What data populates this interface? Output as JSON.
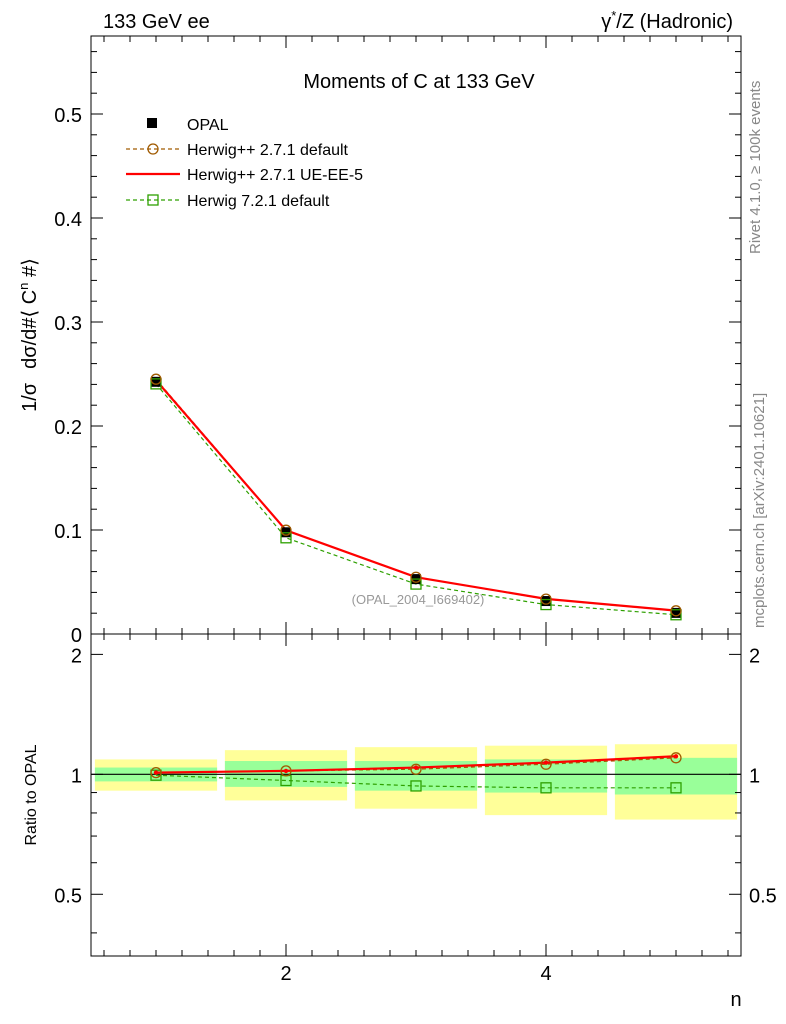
{
  "header": {
    "left": "133 GeV ee",
    "right_prefix": "γ",
    "right_sup": "*",
    "right_suffix": "/Z (Hadronic)"
  },
  "side_labels": {
    "rivet": "Rivet 4.1.0, ≥ 100k events",
    "mcplots": "mcplots.cern.ch [arXiv:2401.10621]"
  },
  "colors": {
    "data": "#000000",
    "herwigpp_default": "#a05a00",
    "herwigpp_ueee5": "#ff0000",
    "herwig7": "#2ea000",
    "band_inner": "#99ff99",
    "band_outer": "#ffff99"
  },
  "chart_data": [
    {
      "type": "line",
      "title": "Moments of C at 133 GeV",
      "xlabel": "n",
      "ylabel_parts": {
        "a": "1/σ",
        "b": "dσ/d#⟨ C",
        "sup": "n",
        "c": " #⟩"
      },
      "xlim": [
        0.5,
        5.5
      ],
      "ylim": [
        0,
        0.575
      ],
      "yticks": [
        0,
        0.1,
        0.2,
        0.3,
        0.4,
        0.5
      ],
      "ytick_labels": [
        "0",
        "0.1",
        "0.2",
        "0.3",
        "0.4",
        "0.5"
      ],
      "watermark": "(OPAL_2004_I669402)",
      "x": [
        1,
        2,
        3,
        4,
        5
      ],
      "series": [
        {
          "name": "OPAL",
          "key": "data",
          "values": [
            0.2425,
            0.0978,
            0.0528,
            0.0317,
            0.0203
          ]
        },
        {
          "name": "Herwig++ 2.7.1 default",
          "key": "herwigpp_default",
          "values": [
            0.245,
            0.0998,
            0.0546,
            0.0335,
            0.0223
          ]
        },
        {
          "name": "Herwig++ 2.7.1 UE-EE-5",
          "key": "herwigpp_ueee5",
          "values": [
            0.244,
            0.0997,
            0.0546,
            0.0338,
            0.0225
          ]
        },
        {
          "name": "Herwig 7.2.1 default",
          "key": "herwig7",
          "values": [
            0.2405,
            0.0925,
            0.048,
            0.0283,
            0.0185
          ]
        }
      ]
    },
    {
      "type": "line",
      "title": "",
      "xlabel": "n",
      "ylabel": "Ratio to OPAL",
      "xlim": [
        0.5,
        5.5
      ],
      "ylim": [
        0.35,
        2.25
      ],
      "yticks": [
        0.5,
        1,
        2
      ],
      "ytick_labels": [
        "0.5",
        "1",
        "2"
      ],
      "xticks": [
        2,
        4
      ],
      "xtick_labels": [
        "2",
        "4"
      ],
      "x": [
        1,
        2,
        3,
        4,
        5
      ],
      "band_inner": [
        [
          0.96,
          1.04
        ],
        [
          0.93,
          1.08
        ],
        [
          0.91,
          1.08
        ],
        [
          0.9,
          1.09
        ],
        [
          0.89,
          1.1
        ]
      ],
      "band_outer": [
        [
          0.91,
          1.09
        ],
        [
          0.86,
          1.15
        ],
        [
          0.82,
          1.17
        ],
        [
          0.79,
          1.18
        ],
        [
          0.77,
          1.19
        ]
      ],
      "series": [
        {
          "name": "Herwig++ 2.7.1 default",
          "key": "herwigpp_default",
          "values": [
            1.01,
            1.02,
            1.03,
            1.06,
            1.1
          ]
        },
        {
          "name": "Herwig++ 2.7.1 UE-EE-5",
          "key": "herwigpp_ueee5",
          "values": [
            1.01,
            1.02,
            1.04,
            1.07,
            1.11
          ]
        },
        {
          "name": "Herwig 7.2.1 default",
          "key": "herwig7",
          "values": [
            0.995,
            0.965,
            0.935,
            0.925,
            0.925
          ]
        }
      ]
    }
  ]
}
